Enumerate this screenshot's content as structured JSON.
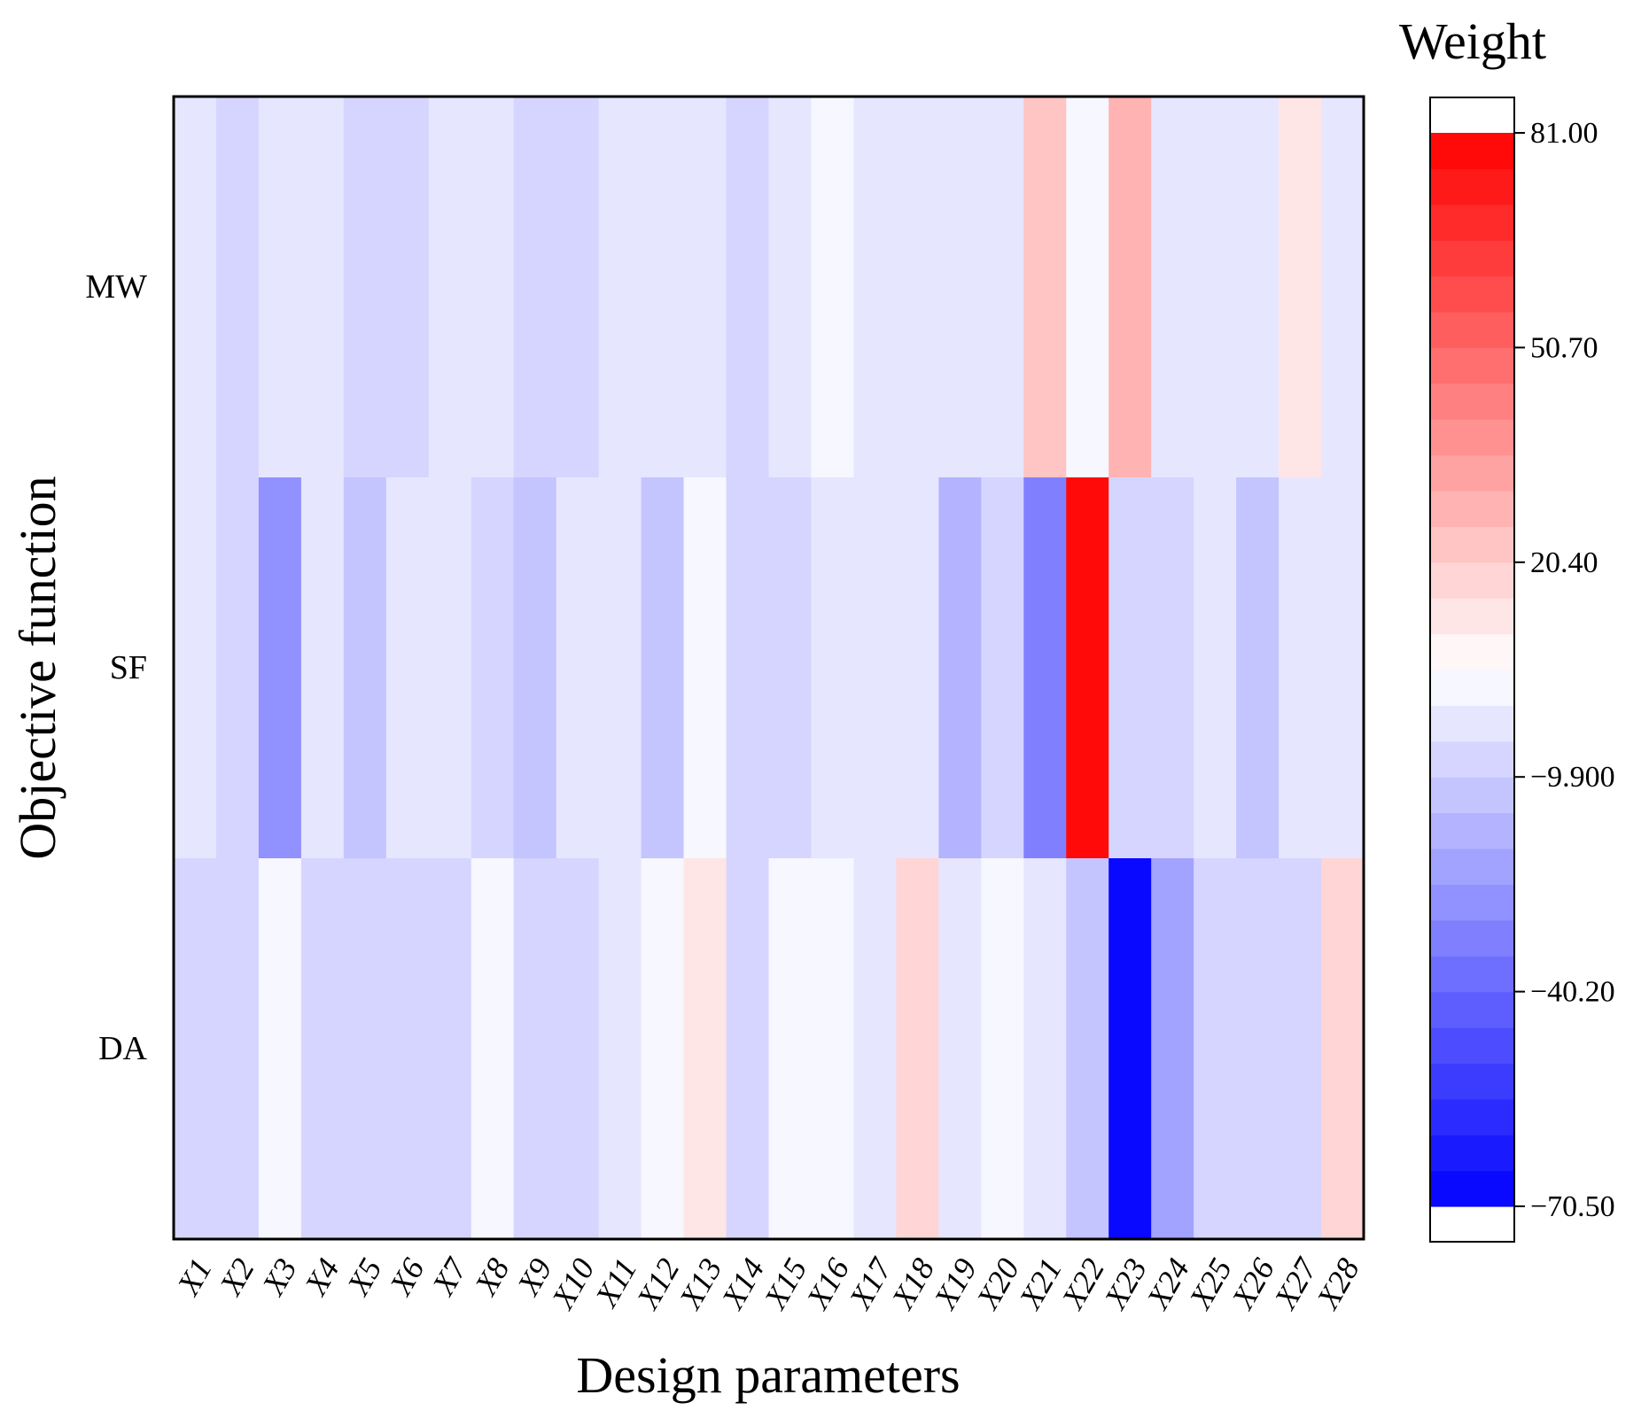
{
  "chart_data": {
    "type": "heatmap",
    "title": "",
    "xlabel": "Design parameters",
    "ylabel": "Objective function",
    "x_categories": [
      "X1",
      "X2",
      "X3",
      "X4",
      "X5",
      "X6",
      "X7",
      "X8",
      "X9",
      "X10",
      "X11",
      "X12",
      "X13",
      "X14",
      "X15",
      "X16",
      "X17",
      "X18",
      "X19",
      "X20",
      "X21",
      "X22",
      "X23",
      "X24",
      "X25",
      "X26",
      "X27",
      "X28"
    ],
    "y_categories": [
      "MW",
      "SF",
      "DA"
    ],
    "values": [
      [
        -2,
        -6,
        -2,
        -2,
        -6,
        -6,
        -2,
        -2,
        -6,
        -6,
        -2,
        -2,
        -2,
        -6,
        -2,
        4,
        -2,
        -2,
        -2,
        -2,
        24,
        4,
        28,
        -2,
        -2,
        -2,
        12,
        -2
      ],
      [
        -2,
        -6,
        -30,
        -2,
        -12,
        -2,
        -2,
        -6,
        -12,
        -2,
        -2,
        -12,
        4,
        -6,
        -6,
        -2,
        -2,
        -2,
        -18,
        -6,
        -32,
        81,
        -6,
        -6,
        -2,
        -12,
        -2,
        -2
      ],
      [
        -6,
        -6,
        4,
        -6,
        -6,
        -6,
        -6,
        4,
        -6,
        -6,
        -2,
        4,
        12,
        -6,
        4,
        4,
        -2,
        16,
        -2,
        4,
        -2,
        -12,
        -70.5,
        -22,
        -6,
        -6,
        -6,
        16
      ]
    ],
    "colorbar": {
      "title": "Weight",
      "ticks": [
        "81.00",
        "50.70",
        "20.40",
        "−9.900",
        "−40.20",
        "−70.50"
      ],
      "tick_values": [
        81.0,
        50.7,
        20.4,
        -9.9,
        -40.2,
        -70.5
      ],
      "range": [
        -70.5,
        81.0
      ],
      "levels": 30,
      "low_color": "#0000ff",
      "mid_color": "#ffffff",
      "high_color": "#ff0000"
    }
  }
}
